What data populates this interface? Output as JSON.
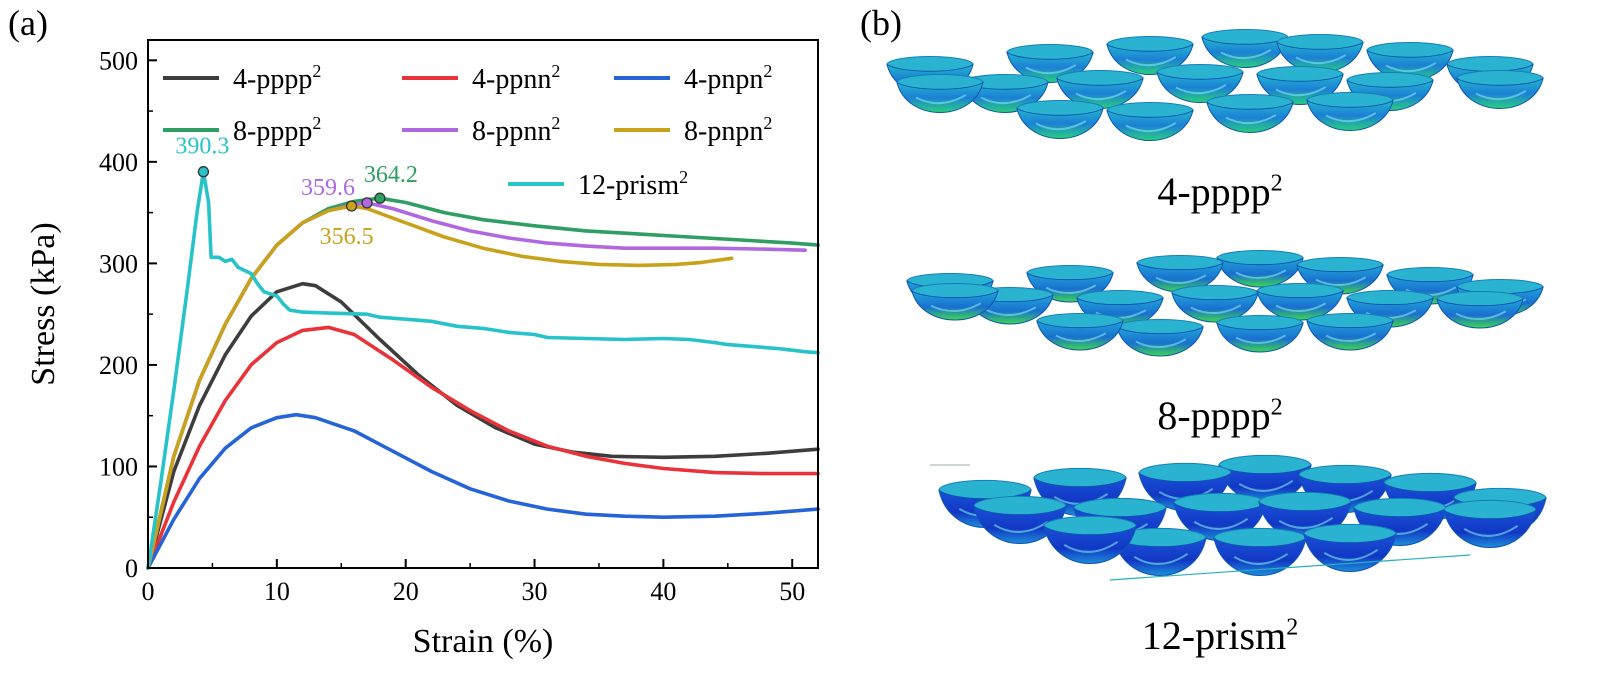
{
  "panel_a_label": "(a)",
  "panel_b_label": "(b)",
  "chart_data": {
    "type": "line",
    "xlabel": "Strain (%)",
    "ylabel": "Stress (kPa)",
    "xlim": [
      0,
      52
    ],
    "ylim": [
      0,
      520
    ],
    "xticks": [
      0,
      10,
      20,
      30,
      40,
      50
    ],
    "yticks": [
      0,
      100,
      200,
      300,
      400,
      500
    ],
    "grid": false,
    "legend_position": "top",
    "series": [
      {
        "name": "4-pppp²",
        "color": "#3d3d3d",
        "points": [
          [
            0,
            0
          ],
          [
            2,
            95
          ],
          [
            4,
            160
          ],
          [
            6,
            210
          ],
          [
            8,
            248
          ],
          [
            10,
            272
          ],
          [
            12,
            280
          ],
          [
            13,
            278
          ],
          [
            15,
            262
          ],
          [
            18,
            225
          ],
          [
            21,
            190
          ],
          [
            24,
            160
          ],
          [
            27,
            138
          ],
          [
            30,
            122
          ],
          [
            33,
            114
          ],
          [
            36,
            110
          ],
          [
            40,
            109
          ],
          [
            44,
            110
          ],
          [
            48,
            113
          ],
          [
            52,
            117
          ]
        ]
      },
      {
        "name": "4-ppnn²",
        "color": "#e8333a",
        "points": [
          [
            0,
            0
          ],
          [
            2,
            65
          ],
          [
            4,
            120
          ],
          [
            6,
            165
          ],
          [
            8,
            200
          ],
          [
            10,
            222
          ],
          [
            12,
            234
          ],
          [
            14,
            237
          ],
          [
            16,
            230
          ],
          [
            19,
            205
          ],
          [
            22,
            178
          ],
          [
            25,
            155
          ],
          [
            28,
            135
          ],
          [
            31,
            120
          ],
          [
            34,
            110
          ],
          [
            37,
            103
          ],
          [
            40,
            98
          ],
          [
            44,
            94
          ],
          [
            48,
            93
          ],
          [
            52,
            93
          ]
        ]
      },
      {
        "name": "4-pnpn²",
        "color": "#2563d6",
        "points": [
          [
            0,
            0
          ],
          [
            2,
            48
          ],
          [
            4,
            88
          ],
          [
            6,
            118
          ],
          [
            8,
            138
          ],
          [
            10,
            148
          ],
          [
            11.5,
            151
          ],
          [
            13,
            148
          ],
          [
            16,
            135
          ],
          [
            19,
            115
          ],
          [
            22,
            95
          ],
          [
            25,
            78
          ],
          [
            28,
            66
          ],
          [
            31,
            58
          ],
          [
            34,
            53
          ],
          [
            37,
            51
          ],
          [
            40,
            50
          ],
          [
            44,
            51
          ],
          [
            48,
            54
          ],
          [
            52,
            58
          ]
        ]
      },
      {
        "name": "8-pppp²",
        "color": "#2e9e62",
        "points": [
          [
            0,
            0
          ],
          [
            2,
            110
          ],
          [
            4,
            185
          ],
          [
            6,
            240
          ],
          [
            8,
            285
          ],
          [
            10,
            318
          ],
          [
            12,
            340
          ],
          [
            14,
            354
          ],
          [
            16,
            361
          ],
          [
            18,
            364.2
          ],
          [
            20,
            360
          ],
          [
            23,
            350
          ],
          [
            26,
            343
          ],
          [
            30,
            337
          ],
          [
            34,
            332
          ],
          [
            38,
            329
          ],
          [
            42,
            326
          ],
          [
            46,
            323
          ],
          [
            50,
            320
          ],
          [
            52,
            318
          ]
        ]
      },
      {
        "name": "8-ppnn²",
        "color": "#b068e0",
        "points": [
          [
            0,
            0
          ],
          [
            2,
            110
          ],
          [
            4,
            185
          ],
          [
            6,
            240
          ],
          [
            8,
            285
          ],
          [
            10,
            318
          ],
          [
            12,
            340
          ],
          [
            14,
            352
          ],
          [
            16,
            358
          ],
          [
            17,
            359.6
          ],
          [
            19,
            354
          ],
          [
            22,
            342
          ],
          [
            25,
            332
          ],
          [
            28,
            325
          ],
          [
            31,
            320
          ],
          [
            34,
            317
          ],
          [
            37,
            315
          ],
          [
            40,
            315
          ],
          [
            44,
            315
          ],
          [
            48,
            314
          ],
          [
            51,
            313
          ]
        ]
      },
      {
        "name": "8-pnpn²",
        "color": "#c9a21b",
        "points": [
          [
            0,
            0
          ],
          [
            2,
            110
          ],
          [
            4,
            185
          ],
          [
            6,
            240
          ],
          [
            8,
            285
          ],
          [
            10,
            318
          ],
          [
            12,
            340
          ],
          [
            14,
            352
          ],
          [
            15.8,
            356.5
          ],
          [
            17,
            354
          ],
          [
            20,
            340
          ],
          [
            23,
            326
          ],
          [
            26,
            315
          ],
          [
            29,
            307
          ],
          [
            32,
            302
          ],
          [
            35,
            299
          ],
          [
            38,
            298
          ],
          [
            41,
            299
          ],
          [
            43,
            301
          ],
          [
            45.3,
            305
          ]
        ]
      },
      {
        "name": "12-prism²",
        "color": "#27c3c9",
        "points": [
          [
            0,
            0
          ],
          [
            1,
            85
          ],
          [
            2,
            175
          ],
          [
            3,
            270
          ],
          [
            3.8,
            350
          ],
          [
            4.3,
            390.3
          ],
          [
            4.7,
            360
          ],
          [
            4.9,
            306
          ],
          [
            5.5,
            306
          ],
          [
            6,
            302
          ],
          [
            6.5,
            304
          ],
          [
            7,
            296
          ],
          [
            7.5,
            293
          ],
          [
            8,
            290
          ],
          [
            8.5,
            280
          ],
          [
            9,
            272
          ],
          [
            10,
            268
          ],
          [
            10.5,
            260
          ],
          [
            11,
            254
          ],
          [
            12,
            252
          ],
          [
            14,
            251
          ],
          [
            17,
            250
          ],
          [
            18,
            247
          ],
          [
            20,
            245
          ],
          [
            22,
            243
          ],
          [
            24,
            238
          ],
          [
            26,
            236
          ],
          [
            28,
            232
          ],
          [
            30,
            230
          ],
          [
            31,
            227
          ],
          [
            34,
            226
          ],
          [
            37,
            225
          ],
          [
            40,
            226
          ],
          [
            42,
            225
          ],
          [
            44,
            222
          ],
          [
            45,
            220
          ],
          [
            47,
            218
          ],
          [
            49,
            216
          ],
          [
            51,
            213
          ],
          [
            52,
            212
          ]
        ]
      }
    ],
    "annotations": [
      {
        "text": "390.3",
        "x": 4.3,
        "y": 390.3,
        "color": "#27c3c9"
      },
      {
        "text": "364.2",
        "x": 18,
        "y": 364.2,
        "color": "#2e9e62"
      },
      {
        "text": "359.6",
        "x": 17,
        "y": 359.6,
        "color": "#b068e0"
      },
      {
        "text": "356.5",
        "x": 15.8,
        "y": 356.5,
        "color": "#c9a21b"
      }
    ]
  },
  "panel_b": {
    "captions": [
      {
        "base": "4-pppp",
        "sup": "2"
      },
      {
        "base": "8-pppp",
        "sup": "2"
      },
      {
        "base": "12-prism",
        "sup": "2"
      }
    ]
  }
}
